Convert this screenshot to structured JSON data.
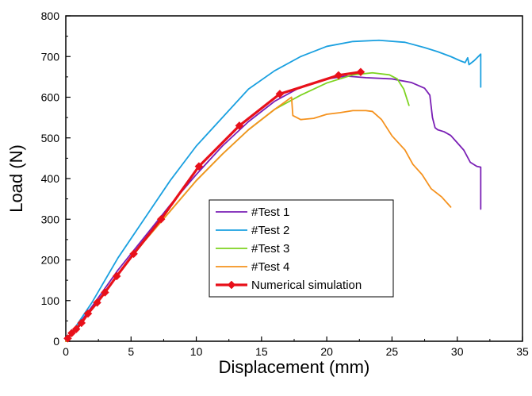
{
  "chart_data": {
    "type": "line",
    "xlabel": "Displacement (mm)",
    "ylabel": "Load (N)",
    "xlim": [
      0,
      35
    ],
    "ylim": [
      0,
      800
    ],
    "x_ticks": [
      0,
      5,
      10,
      15,
      20,
      25,
      30,
      35
    ],
    "y_ticks": [
      0,
      100,
      200,
      300,
      400,
      500,
      600,
      700,
      800
    ],
    "grid": false,
    "legend_position": "center-bottom",
    "series": [
      {
        "name": "#Test 1",
        "color": "#7a1fb5",
        "points": [
          [
            0,
            0
          ],
          [
            2,
            85
          ],
          [
            4,
            175
          ],
          [
            6,
            255
          ],
          [
            8,
            335
          ],
          [
            10,
            410
          ],
          [
            12,
            480
          ],
          [
            14,
            540
          ],
          [
            16,
            590
          ],
          [
            18,
            625
          ],
          [
            20,
            645
          ],
          [
            21.5,
            652
          ],
          [
            23,
            648
          ],
          [
            25,
            645
          ],
          [
            26.5,
            636
          ],
          [
            27.5,
            622
          ],
          [
            27.9,
            605
          ],
          [
            28.1,
            550
          ],
          [
            28.3,
            525
          ],
          [
            28.5,
            520
          ],
          [
            29,
            515
          ],
          [
            29.5,
            506
          ],
          [
            30,
            488
          ],
          [
            30.5,
            470
          ],
          [
            31,
            440
          ],
          [
            31.5,
            430
          ],
          [
            31.8,
            428
          ],
          [
            31.8,
            325
          ]
        ]
      },
      {
        "name": "#Test 2",
        "color": "#1aa0e0",
        "points": [
          [
            0,
            0
          ],
          [
            2,
            95
          ],
          [
            4,
            205
          ],
          [
            6,
            300
          ],
          [
            8,
            395
          ],
          [
            10,
            480
          ],
          [
            12,
            550
          ],
          [
            14,
            620
          ],
          [
            16,
            665
          ],
          [
            18,
            700
          ],
          [
            20,
            725
          ],
          [
            22,
            737
          ],
          [
            24,
            740
          ],
          [
            26,
            735
          ],
          [
            27.5,
            722
          ],
          [
            28.5,
            712
          ],
          [
            29.5,
            700
          ],
          [
            30.2,
            690
          ],
          [
            30.6,
            685
          ],
          [
            30.8,
            697
          ],
          [
            30.9,
            680
          ],
          [
            31.3,
            690
          ],
          [
            31.8,
            706
          ],
          [
            31.8,
            625
          ]
        ]
      },
      {
        "name": "#Test 3",
        "color": "#7ed321",
        "points": [
          [
            0,
            0
          ],
          [
            2,
            80
          ],
          [
            4,
            165
          ],
          [
            6,
            245
          ],
          [
            8,
            320
          ],
          [
            10,
            395
          ],
          [
            12,
            460
          ],
          [
            14,
            520
          ],
          [
            16,
            570
          ],
          [
            18,
            605
          ],
          [
            20,
            635
          ],
          [
            22,
            655
          ],
          [
            23.5,
            660
          ],
          [
            24.8,
            655
          ],
          [
            25.4,
            645
          ],
          [
            25.9,
            620
          ],
          [
            26.3,
            580
          ]
        ]
      },
      {
        "name": "#Test 4",
        "color": "#f5921e",
        "points": [
          [
            0,
            0
          ],
          [
            2,
            80
          ],
          [
            4,
            165
          ],
          [
            6,
            245
          ],
          [
            8,
            320
          ],
          [
            10,
            395
          ],
          [
            12,
            460
          ],
          [
            14,
            520
          ],
          [
            16,
            570
          ],
          [
            17.3,
            600
          ],
          [
            17.4,
            555
          ],
          [
            18,
            545
          ],
          [
            19,
            548
          ],
          [
            20,
            558
          ],
          [
            21,
            562
          ],
          [
            22,
            567
          ],
          [
            23,
            567
          ],
          [
            23.5,
            565
          ],
          [
            24.2,
            545
          ],
          [
            25,
            505
          ],
          [
            26,
            470
          ],
          [
            26.6,
            435
          ],
          [
            27.3,
            410
          ],
          [
            28,
            375
          ],
          [
            28.8,
            355
          ],
          [
            29.5,
            330
          ]
        ]
      },
      {
        "name": "Numerical simulation",
        "color": "#e8101a",
        "markers": true,
        "points": [
          [
            0.15,
            7
          ],
          [
            0.45,
            20
          ],
          [
            0.8,
            30
          ],
          [
            1.2,
            45
          ],
          [
            1.7,
            68
          ],
          [
            2.4,
            95
          ],
          [
            3,
            120
          ],
          [
            3.9,
            160
          ],
          [
            5.2,
            215
          ],
          [
            7.3,
            300
          ],
          [
            10.2,
            430
          ],
          [
            13.3,
            530
          ],
          [
            16.4,
            608
          ],
          [
            20.9,
            654
          ],
          [
            22.6,
            662
          ]
        ]
      }
    ]
  }
}
